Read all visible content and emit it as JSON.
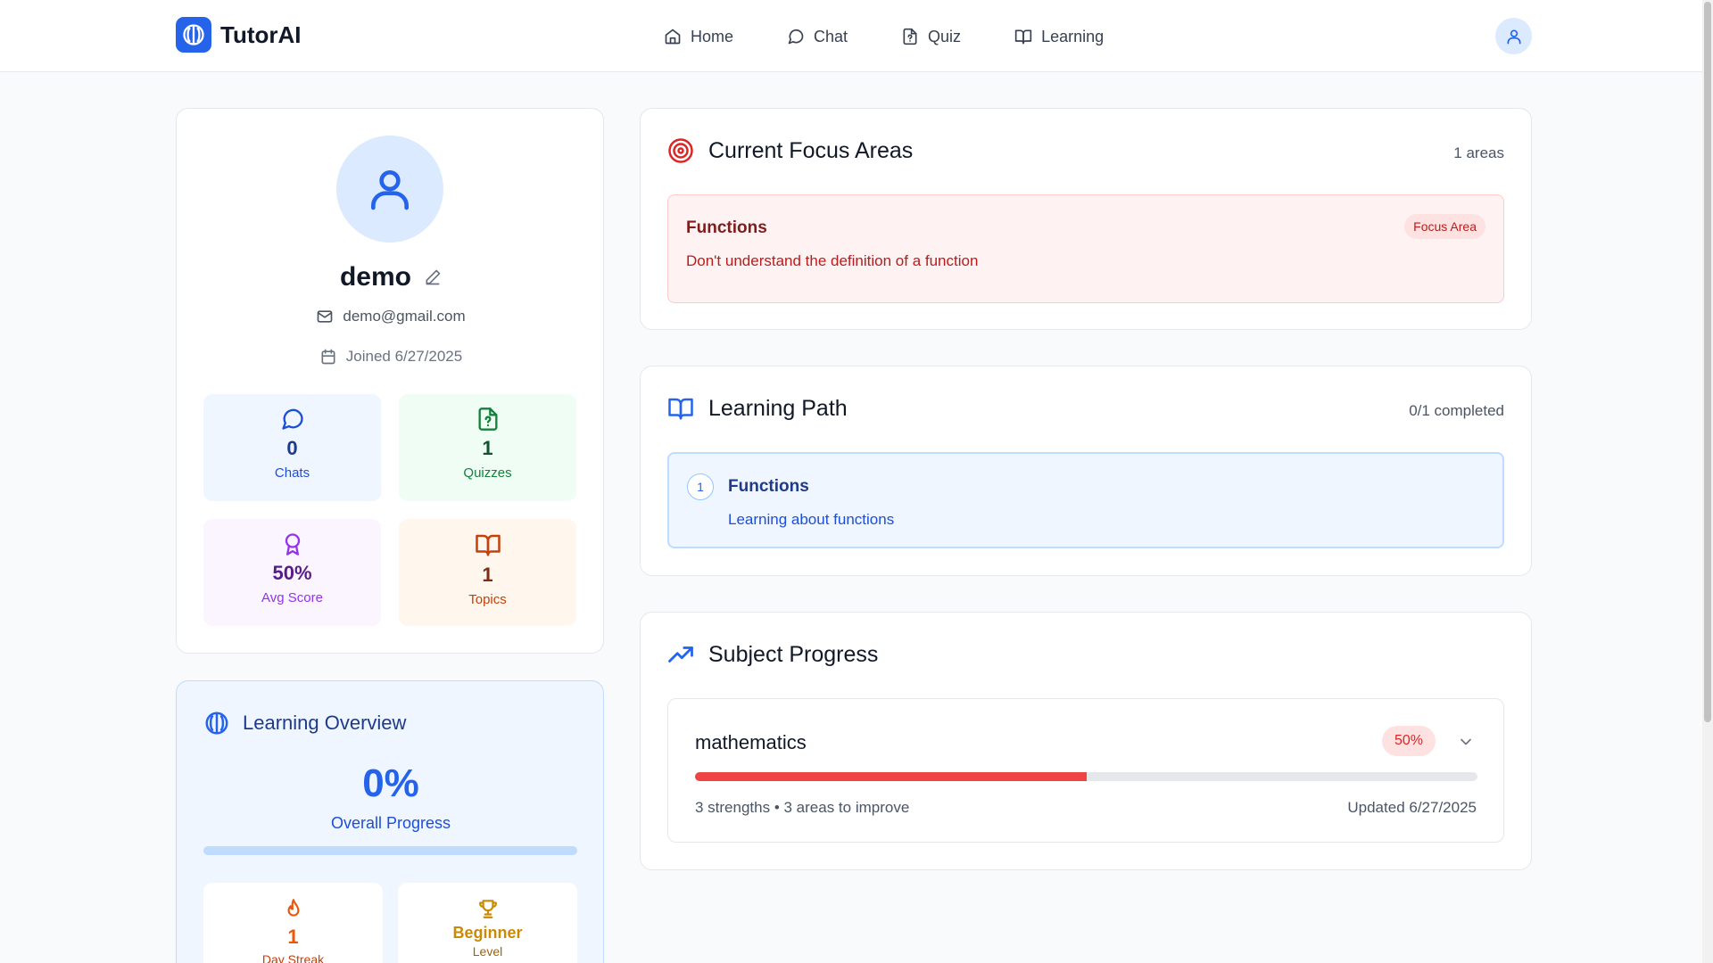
{
  "app": {
    "name": "TutorAI"
  },
  "nav": {
    "items": [
      {
        "label": "Home",
        "icon": "home-icon"
      },
      {
        "label": "Chat",
        "icon": "chat-icon"
      },
      {
        "label": "Quiz",
        "icon": "quiz-icon"
      },
      {
        "label": "Learning",
        "icon": "book-icon"
      }
    ]
  },
  "profile": {
    "name": "demo",
    "email": "demo@gmail.com",
    "joined": "Joined 6/27/2025",
    "stats": [
      {
        "value": "0",
        "label": "Chats",
        "icon": "chat-icon",
        "bg": "#eff6ff",
        "color": "#1d4ed8",
        "value_color": "#1e3a8a"
      },
      {
        "value": "1",
        "label": "Quizzes",
        "icon": "quiz-icon",
        "bg": "#f0fdf4",
        "color": "#15803d",
        "value_color": "#14532d"
      },
      {
        "value": "50%",
        "label": "Avg Score",
        "icon": "award-icon",
        "bg": "#faf5ff",
        "color": "#9333ea",
        "value_color": "#581c87"
      },
      {
        "value": "1",
        "label": "Topics",
        "icon": "book-icon",
        "bg": "#fff7ed",
        "color": "#c2410c",
        "value_color": "#7c2d12"
      }
    ]
  },
  "overview": {
    "title": "Learning Overview",
    "percent": "0%",
    "progress": 0,
    "label": "Overall Progress",
    "streak": {
      "value": "1",
      "label": "Day Streak"
    },
    "level": {
      "value": "Beginner",
      "label": "Level"
    }
  },
  "focus": {
    "title": "Current Focus Areas",
    "count": "1 areas",
    "items": [
      {
        "title": "Functions",
        "description": "Don't understand the definition of a function",
        "badge": "Focus Area"
      }
    ]
  },
  "path": {
    "title": "Learning Path",
    "count": "0/1 completed",
    "items": [
      {
        "number": "1",
        "title": "Functions",
        "description": "Learning about functions"
      }
    ]
  },
  "subjects": {
    "title": "Subject Progress",
    "items": [
      {
        "name": "mathematics",
        "percent": "50%",
        "progress": 0.5,
        "summary": "3 strengths • 3 areas to improve",
        "updated": "Updated 6/27/2025"
      }
    ]
  },
  "colors": {
    "accent": "#2563eb",
    "focus": "#dc2626",
    "progress_bar": "#ef4444"
  }
}
